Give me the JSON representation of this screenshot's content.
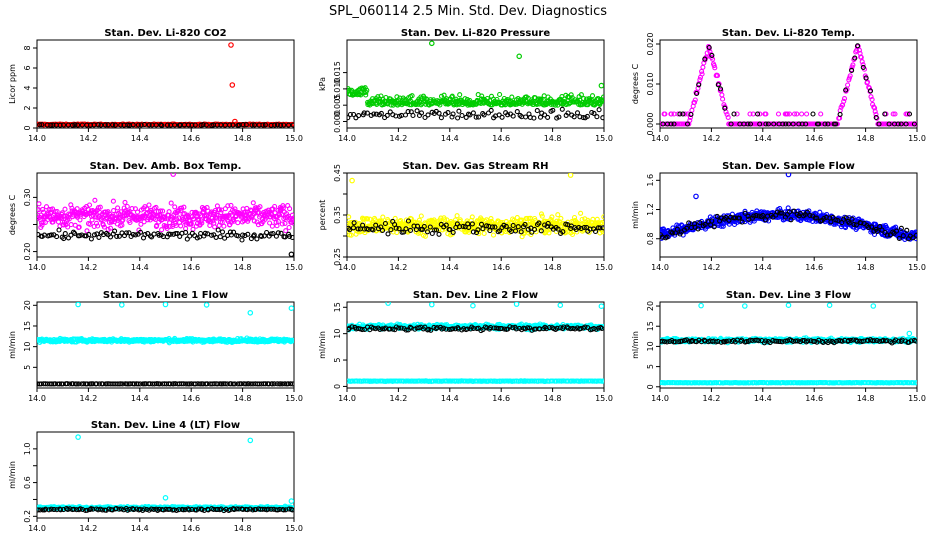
{
  "page_title": "SPL_060114  2.5 Min. Std. Dev. Diagnostics",
  "colors": {
    "red": "#ff0000",
    "green": "#00cc00",
    "magenta": "#ff00ff",
    "yellow": "#ffff00",
    "blue": "#0000ff",
    "cyan": "#00ffff",
    "black": "#000000"
  },
  "chart_data": [
    {
      "type": "scatter",
      "title": "Stan. Dev. Li-820 CO2",
      "ylabel": "Licor ppm",
      "xlim": [
        14.0,
        15.0
      ],
      "ylim": [
        0,
        8.8
      ],
      "xticks": [
        "14.0",
        "14.2",
        "14.4",
        "14.6",
        "14.8",
        "15.0"
      ],
      "yticks": [
        0,
        2,
        4,
        6,
        8
      ],
      "ytick_labels": [
        "0",
        "2",
        "4",
        "6",
        "8"
      ],
      "series": [
        {
          "name": "primary",
          "color": "red",
          "baseline": 0.35,
          "spread": 0.08,
          "n": 260,
          "outliers": [
            [
              14.755,
              8.3
            ],
            [
              14.76,
              4.3
            ],
            [
              14.77,
              0.65
            ]
          ]
        },
        {
          "name": "black",
          "color": "black",
          "baseline": 0.3,
          "spread": 0.06,
          "n": 70,
          "outliers": []
        }
      ]
    },
    {
      "type": "scatter",
      "title": "Stan. Dev. Li-820 Pressure",
      "ylabel": "kPa",
      "xlim": [
        14.0,
        15.0
      ],
      "ylim": [
        -0.002,
        0.025
      ],
      "xticks": [
        "14.0",
        "14.2",
        "14.4",
        "14.6",
        "14.8",
        "15.0"
      ],
      "yticks": [
        0.0,
        0.005,
        0.01,
        0.015
      ],
      "ytick_labels": [
        "0.000",
        "0.005",
        "0.010",
        "0.015"
      ],
      "series": [
        {
          "name": "primary",
          "color": "green",
          "profile": "pressure",
          "n": 420,
          "outliers": [
            [
              14.33,
              0.024
            ],
            [
              14.67,
              0.02
            ],
            [
              14.99,
              0.011
            ]
          ]
        },
        {
          "name": "black",
          "color": "black",
          "profile": "pressure_low",
          "n": 90,
          "outliers": []
        }
      ]
    },
    {
      "type": "scatter",
      "title": "Stan. Dev. Li-820 Temp.",
      "ylabel": "degrees C",
      "xlim": [
        14.0,
        15.0
      ],
      "ylim": [
        -0.001,
        0.021
      ],
      "xticks": [
        "14.0",
        "14.2",
        "14.4",
        "14.6",
        "14.8",
        "15.0"
      ],
      "yticks": [
        0.0,
        0.01,
        0.02
      ],
      "ytick_labels": [
        "0.000",
        "0.010",
        "0.020"
      ],
      "series": [
        {
          "name": "primary",
          "color": "magenta",
          "profile": "twin_peaks",
          "n": 300,
          "outliers": []
        },
        {
          "name": "black",
          "color": "black",
          "profile": "twin_peaks",
          "n": 60,
          "outliers": []
        }
      ]
    },
    {
      "type": "scatter",
      "title": "Stan. Dev. Amb. Box Temp.",
      "ylabel": "degrees C",
      "xlim": [
        14.0,
        15.0
      ],
      "ylim": [
        0.19,
        0.345
      ],
      "xticks": [
        "14.0",
        "14.2",
        "14.4",
        "14.6",
        "14.8",
        "15.0"
      ],
      "yticks": [
        0.2,
        0.25,
        0.3
      ],
      "ytick_labels": [
        "0.20",
        "",
        "0.30"
      ],
      "series": [
        {
          "name": "primary",
          "color": "magenta",
          "baseline": 0.265,
          "spread": 0.035,
          "n": 520,
          "outliers": [
            [
              14.53,
              0.343
            ]
          ]
        },
        {
          "name": "black",
          "color": "black",
          "baseline": 0.23,
          "spread": 0.012,
          "n": 110,
          "outliers": [
            [
              14.99,
              0.195
            ]
          ]
        }
      ]
    },
    {
      "type": "scatter",
      "title": "Stan. Dev. Gas Stream RH",
      "ylabel": "percent",
      "xlim": [
        14.0,
        15.0
      ],
      "ylim": [
        0.25,
        0.45
      ],
      "xticks": [
        "14.0",
        "14.2",
        "14.4",
        "14.6",
        "14.8",
        "15.0"
      ],
      "yticks": [
        0.25,
        0.3,
        0.35,
        0.4,
        0.45
      ],
      "ytick_labels": [
        "0.25",
        "",
        "0.35",
        "",
        "0.45"
      ],
      "series": [
        {
          "name": "primary",
          "color": "yellow",
          "baseline": 0.325,
          "spread": 0.035,
          "n": 520,
          "outliers": [
            [
              14.02,
              0.432
            ],
            [
              14.87,
              0.445
            ]
          ]
        },
        {
          "name": "black",
          "color": "black",
          "baseline": 0.32,
          "spread": 0.025,
          "n": 110,
          "outliers": []
        }
      ]
    },
    {
      "type": "scatter",
      "title": "Stan. Dev. Sample Flow",
      "ylabel": "ml/min",
      "xlim": [
        14.0,
        15.0
      ],
      "ylim": [
        0.55,
        1.7
      ],
      "xticks": [
        "14.0",
        "14.2",
        "14.4",
        "14.6",
        "14.8",
        "15.0"
      ],
      "yticks": [
        0.8,
        1.2,
        1.6
      ],
      "ytick_labels": [
        "0.8",
        "1.2",
        "1.6"
      ],
      "series": [
        {
          "name": "primary",
          "color": "blue",
          "profile": "flow_arch",
          "n": 620,
          "outliers": [
            [
              14.5,
              1.68
            ],
            [
              14.14,
              1.38
            ]
          ]
        },
        {
          "name": "black",
          "color": "black",
          "profile": "flow_arch",
          "n": 110,
          "outliers": []
        }
      ]
    },
    {
      "type": "scatter",
      "title": "Stan. Dev. Line 1 Flow",
      "ylabel": "ml/min",
      "xlim": [
        14.0,
        15.0
      ],
      "ylim": [
        0,
        20.8
      ],
      "xticks": [
        "14.0",
        "14.2",
        "14.4",
        "14.6",
        "14.8",
        "15.0"
      ],
      "yticks": [
        5,
        10,
        15,
        20
      ],
      "ytick_labels": [
        "5",
        "10",
        "15",
        "20"
      ],
      "series": [
        {
          "name": "primary",
          "color": "cyan",
          "baseline": 11.5,
          "spread": 0.7,
          "n": 480,
          "outliers": [
            [
              14.16,
              20.2
            ],
            [
              14.33,
              20.1
            ],
            [
              14.5,
              20.2
            ],
            [
              14.66,
              20.1
            ],
            [
              14.83,
              18.2
            ],
            [
              14.99,
              19.3
            ]
          ]
        },
        {
          "name": "black",
          "color": "black",
          "baseline": 1.0,
          "spread": 0.05,
          "n": 130,
          "outliers": []
        }
      ]
    },
    {
      "type": "scatter",
      "title": "Stan. Dev. Line 2 Flow",
      "ylabel": "ml/min",
      "xlim": [
        14.0,
        15.0
      ],
      "ylim": [
        -0.3,
        16
      ],
      "xticks": [
        "14.0",
        "14.2",
        "14.4",
        "14.6",
        "14.8",
        "15.0"
      ],
      "yticks": [
        0,
        5,
        10,
        15
      ],
      "ytick_labels": [
        "0",
        "5",
        "10",
        "15"
      ],
      "series": [
        {
          "name": "primary",
          "color": "cyan",
          "baseline": 11.3,
          "spread": 0.8,
          "n": 460,
          "outliers": [
            [
              14.16,
              15.8
            ],
            [
              14.33,
              15.5
            ],
            [
              14.49,
              15.3
            ],
            [
              14.66,
              15.6
            ],
            [
              14.83,
              15.4
            ],
            [
              14.99,
              15.2
            ]
          ]
        },
        {
          "name": "cyan-low",
          "color": "cyan",
          "baseline": 1.0,
          "spread": 0.08,
          "n": 200,
          "outliers": []
        },
        {
          "name": "black",
          "color": "black",
          "baseline": 11.0,
          "spread": 0.6,
          "n": 120,
          "outliers": []
        }
      ]
    },
    {
      "type": "scatter",
      "title": "Stan. Dev. Line 3 Flow",
      "ylabel": "ml/min",
      "xlim": [
        14.0,
        15.0
      ],
      "ylim": [
        -0.3,
        21
      ],
      "xticks": [
        "14.0",
        "14.2",
        "14.4",
        "14.6",
        "14.8",
        "15.0"
      ],
      "yticks": [
        0,
        5,
        10,
        15,
        20
      ],
      "ytick_labels": [
        "0",
        "5",
        "10",
        "15",
        "20"
      ],
      "series": [
        {
          "name": "primary",
          "color": "cyan",
          "baseline": 11.5,
          "spread": 0.8,
          "n": 460,
          "outliers": [
            [
              14.16,
              20.1
            ],
            [
              14.33,
              20.0
            ],
            [
              14.5,
              20.2
            ],
            [
              14.66,
              20.2
            ],
            [
              14.83,
              20.0
            ],
            [
              14.97,
              13.2
            ]
          ]
        },
        {
          "name": "cyan-low",
          "color": "cyan",
          "baseline": 1.0,
          "spread": 0.08,
          "n": 200,
          "outliers": []
        },
        {
          "name": "black",
          "color": "black",
          "baseline": 11.3,
          "spread": 0.6,
          "n": 120,
          "outliers": []
        }
      ]
    },
    {
      "type": "scatter",
      "title": "Stan. Dev. Line 4 (LT) Flow",
      "ylabel": "ml/min",
      "xlim": [
        14.0,
        15.0
      ],
      "ylim": [
        0.18,
        1.2
      ],
      "xticks": [
        "14.0",
        "14.2",
        "14.4",
        "14.6",
        "14.8",
        "15.0"
      ],
      "yticks": [
        0.2,
        0.4,
        0.6,
        0.8,
        1.0
      ],
      "ytick_labels": [
        "0.2",
        "",
        "0.6",
        "",
        "1.0"
      ],
      "series": [
        {
          "name": "primary",
          "color": "cyan",
          "baseline": 0.3,
          "spread": 0.025,
          "n": 480,
          "outliers": [
            [
              14.16,
              1.14
            ],
            [
              14.83,
              1.1
            ],
            [
              14.5,
              0.42
            ],
            [
              14.99,
              0.38
            ]
          ]
        },
        {
          "name": "black",
          "color": "black",
          "baseline": 0.28,
          "spread": 0.02,
          "n": 120,
          "outliers": []
        }
      ]
    }
  ]
}
